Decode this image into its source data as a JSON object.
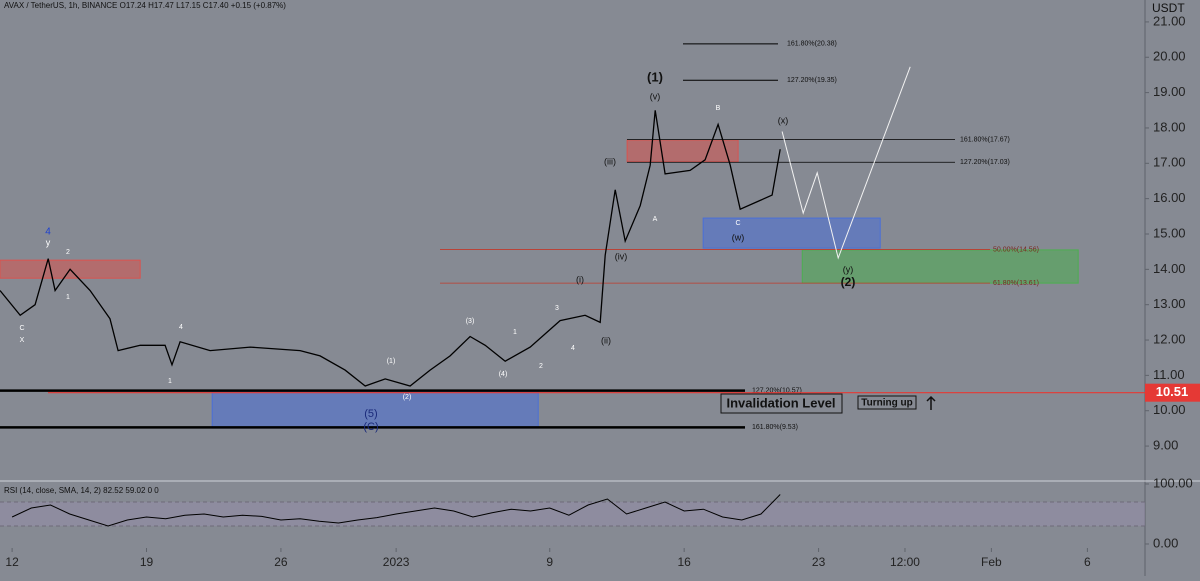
{
  "chart_data": [
    {
      "type": "line",
      "header": "AVAX / TetherUS, 1h, BINANCE  O17.24  H17.47  L17.15  C17.40  +0.15 (+0.87%)",
      "unit": "USDT",
      "xlim": [
        -0.63,
        59.0
      ],
      "ylim": [
        8.04,
        21.62
      ],
      "xticks": [
        {
          "value": 0,
          "label": "12"
        },
        {
          "value": 7,
          "label": "19"
        },
        {
          "value": 14,
          "label": "26"
        },
        {
          "value": 20,
          "label": "2023"
        },
        {
          "value": 28,
          "label": "9"
        },
        {
          "value": 35,
          "label": "16"
        },
        {
          "value": 42,
          "label": "23"
        },
        {
          "value": 46.5,
          "label": "12:00"
        },
        {
          "value": 51,
          "label": "Feb"
        },
        {
          "value": 56,
          "label": "6"
        }
      ],
      "yticks": [
        {
          "value": 9,
          "label": "9.00"
        },
        {
          "value": 10,
          "label": "10.00"
        },
        {
          "value": 11,
          "label": "11.00"
        },
        {
          "value": 12,
          "label": "12.00"
        },
        {
          "value": 13,
          "label": "13.00"
        },
        {
          "value": 14,
          "label": "14.00"
        },
        {
          "value": 15,
          "label": "15.00"
        },
        {
          "value": 16,
          "label": "16.00"
        },
        {
          "value": 17,
          "label": "17.00"
        },
        {
          "value": 18,
          "label": "18.00"
        },
        {
          "value": 19,
          "label": "19.00"
        },
        {
          "value": 20,
          "label": "20.00"
        },
        {
          "value": 21,
          "label": "21.00"
        }
      ],
      "series": [
        {
          "color": "#000000",
          "x": [
            -0.63,
            0.42,
            1.2,
            1.88,
            2.24,
            3.02,
            4.06,
            5.1,
            5.52,
            6.67,
            7.97,
            8.33,
            8.75,
            10.31,
            12.4,
            15,
            16.04,
            17.34,
            18.39,
            19.43,
            20.73,
            21.77,
            22.81,
            23.85,
            24.64,
            25.68,
            26.98,
            28.54,
            29.84,
            30.63,
            30.89,
            31.41,
            31.93,
            32.71,
            33.23,
            33.49,
            34.01,
            35.31,
            36.09,
            36.77,
            37.4,
            37.92,
            38.96,
            39.58,
            40
          ],
          "values": [
            13.4,
            12.7,
            13.0,
            14.3,
            13.4,
            14.0,
            13.4,
            12.6,
            11.7,
            11.85,
            11.85,
            11.3,
            11.95,
            11.7,
            11.8,
            11.7,
            11.55,
            11.15,
            10.7,
            10.9,
            10.7,
            11.15,
            11.55,
            12.1,
            11.85,
            11.4,
            11.8,
            12.55,
            12.7,
            12.5,
            14.4,
            16.25,
            14.8,
            15.8,
            16.95,
            18.5,
            16.7,
            16.8,
            17.1,
            18.1,
            16.95,
            15.7,
            15.95,
            16.1,
            17.4
          ]
        },
        {
          "color": "#f2f2f2",
          "x": [
            40.1,
            41.2,
            41.93,
            43.02,
            46.77
          ],
          "values": [
            17.9,
            15.59,
            16.73,
            14.32,
            19.73
          ]
        }
      ],
      "zones": [
        {
          "color": "#d9534f",
          "x": [
            -0.63,
            6.67
          ],
          "y": [
            13.75,
            14.26
          ]
        },
        {
          "color": "#d9534f",
          "x": [
            32.03,
            37.81
          ],
          "y": [
            17.04,
            17.66
          ]
        },
        {
          "color": "#4a6fd8",
          "x": [
            10.42,
            27.4
          ],
          "y": [
            9.51,
            10.58
          ]
        },
        {
          "color": "#4a6fd8",
          "x": [
            35.99,
            45.21
          ],
          "y": [
            14.6,
            15.45
          ]
        },
        {
          "color": "#4caf50",
          "x": [
            41.15,
            55.52
          ],
          "y": [
            13.61,
            14.55
          ]
        }
      ],
      "levels": [
        {
          "value": 20.38,
          "label": "161.80%(20.38)"
        },
        {
          "value": 19.35,
          "label": "127.20%(19.35)"
        },
        {
          "value": 17.67,
          "label": "161.80%(17.67)"
        },
        {
          "value": 17.03,
          "label": "127.20%(17.03)"
        },
        {
          "value": 14.56,
          "label": "50.00%(14.56)"
        },
        {
          "value": 13.61,
          "label": "61.80%(13.61)"
        },
        {
          "value": 10.57,
          "label": "127.20%(10.57)"
        },
        {
          "value": 9.53,
          "label": "161.80%(9.53)"
        }
      ],
      "price_line": 10.51,
      "annotations": [
        "(1)",
        "(v)",
        "(iii)",
        "(iv)",
        "(i)",
        "(ii)",
        "(x)",
        "B",
        "A",
        "C",
        "(w)",
        "(y)",
        "(2)",
        "4",
        "y",
        "2",
        "1",
        "C",
        "X",
        "4",
        "1",
        "(1)",
        "(3)",
        "1",
        "3",
        "(4)",
        "2",
        "4",
        "(2)",
        "(5)",
        "(C)"
      ],
      "invalidation": "Invalidation Level",
      "turning": "Turning up"
    },
    {
      "type": "line",
      "header": "RSI (14, close, SMA, 14, 2)  82.52  59.02  0  0",
      "xlim": [
        -0.63,
        59.0
      ],
      "ylim": [
        -6.7,
        103.3
      ],
      "yticks": [
        {
          "value": 0,
          "label": "0.00"
        },
        {
          "value": 100,
          "label": "100.00"
        }
      ],
      "band": [
        30,
        70
      ],
      "series": [
        {
          "color": "#000000",
          "x": [
            0,
            1,
            2,
            3,
            4,
            5,
            6,
            7,
            8,
            9,
            10,
            11,
            12,
            13,
            14,
            15,
            16,
            17,
            18,
            19,
            20,
            21,
            22,
            23,
            24,
            25,
            26,
            27,
            28,
            29,
            30,
            31,
            32,
            33,
            34,
            35,
            36,
            37,
            38,
            39,
            40
          ],
          "values": [
            45,
            60,
            65,
            50,
            40,
            30,
            40,
            45,
            42,
            48,
            50,
            45,
            48,
            46,
            40,
            42,
            38,
            35,
            40,
            44,
            50,
            55,
            60,
            55,
            45,
            52,
            58,
            55,
            60,
            48,
            65,
            75,
            50,
            60,
            70,
            55,
            58,
            45,
            40,
            50,
            82.52
          ]
        }
      ]
    }
  ]
}
